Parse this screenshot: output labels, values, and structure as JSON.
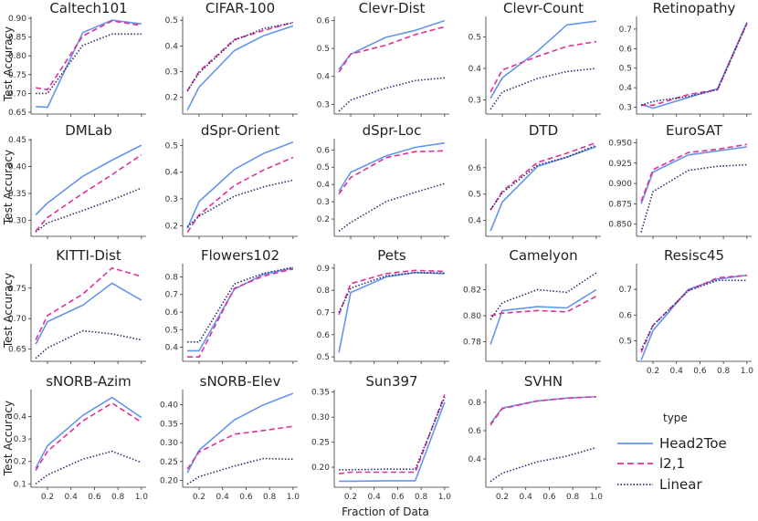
{
  "figure": {
    "xlabel": "Fraction of Data",
    "ylabel": "Test Accuracy",
    "legend": {
      "title": "type",
      "placement": "bottom-right",
      "entries": [
        {
          "name": "Head2Toe",
          "color": "#6495ED",
          "dash": "solid"
        },
        {
          "name": "l2,1",
          "color": "#E0309A",
          "dash": "dashed"
        },
        {
          "name": "Linear",
          "color": "#2F2F6F",
          "dash": "dotted"
        }
      ]
    }
  },
  "chart_data": [
    {
      "type": "line",
      "title": "Caltech101",
      "x": [
        0.1,
        0.2,
        0.5,
        0.75,
        1.0
      ],
      "ylim": [
        0.645,
        0.905
      ],
      "yticks": [
        0.65,
        0.7,
        0.75,
        0.8,
        0.85,
        0.9
      ],
      "ytick_labels": [
        "0.65",
        "0.70",
        "0.75",
        "0.80",
        "0.85",
        "0.90"
      ],
      "series": [
        {
          "name": "Head2Toe",
          "values": [
            0.665,
            0.663,
            0.862,
            0.895,
            0.885
          ]
        },
        {
          "name": "l2,1",
          "values": [
            0.715,
            0.71,
            0.853,
            0.893,
            0.881
          ]
        },
        {
          "name": "Linear",
          "values": [
            0.7,
            0.7,
            0.828,
            0.858,
            0.858
          ]
        }
      ]
    },
    {
      "type": "line",
      "title": "CIFAR-100",
      "x": [
        0.1,
        0.2,
        0.5,
        0.75,
        1.0
      ],
      "ylim": [
        0.135,
        0.515
      ],
      "yticks": [
        0.2,
        0.3,
        0.4,
        0.5
      ],
      "ytick_labels": [
        "0.2",
        "0.3",
        "0.4",
        "0.5"
      ],
      "series": [
        {
          "name": "Head2Toe",
          "values": [
            0.15,
            0.24,
            0.382,
            0.44,
            0.478
          ]
        },
        {
          "name": "l2,1",
          "values": [
            0.225,
            0.3,
            0.425,
            0.46,
            0.492
          ]
        },
        {
          "name": "Linear",
          "values": [
            0.225,
            0.295,
            0.422,
            0.468,
            0.49
          ]
        }
      ]
    },
    {
      "type": "line",
      "title": "Clevr-Dist",
      "x": [
        0.1,
        0.2,
        0.5,
        0.75,
        1.0
      ],
      "ylim": [
        0.265,
        0.615
      ],
      "yticks": [
        0.3,
        0.4,
        0.5,
        0.6
      ],
      "ytick_labels": [
        "0.3",
        "0.4",
        "0.5",
        "0.6"
      ],
      "series": [
        {
          "name": "Head2Toe",
          "values": [
            0.425,
            0.48,
            0.54,
            0.565,
            0.6
          ]
        },
        {
          "name": "l2,1",
          "values": [
            0.415,
            0.48,
            0.512,
            0.55,
            0.578
          ]
        },
        {
          "name": "Linear",
          "values": [
            0.275,
            0.315,
            0.358,
            0.385,
            0.395
          ]
        }
      ]
    },
    {
      "type": "line",
      "title": "Clevr-Count",
      "x": [
        0.1,
        0.2,
        0.5,
        0.75,
        1.0
      ],
      "ylim": [
        0.255,
        0.565
      ],
      "yticks": [
        0.3,
        0.4,
        0.5
      ],
      "ytick_labels": [
        "0.3",
        "0.4",
        "0.5"
      ],
      "series": [
        {
          "name": "Head2Toe",
          "values": [
            0.305,
            0.37,
            0.455,
            0.538,
            0.55
          ]
        },
        {
          "name": "l2,1",
          "values": [
            0.325,
            0.395,
            0.438,
            0.47,
            0.485
          ]
        },
        {
          "name": "Linear",
          "values": [
            0.27,
            0.325,
            0.368,
            0.39,
            0.4
          ]
        }
      ]
    },
    {
      "type": "line",
      "title": "Retinopathy",
      "x": [
        0.1,
        0.2,
        0.5,
        0.75,
        1.0
      ],
      "ylim": [
        0.265,
        0.765
      ],
      "yticks": [
        0.3,
        0.4,
        0.5,
        0.6,
        0.7
      ],
      "ytick_labels": [
        "0.3",
        "0.4",
        "0.5",
        "0.6",
        "0.7"
      ],
      "series": [
        {
          "name": "Head2Toe",
          "values": [
            0.315,
            0.295,
            0.35,
            0.395,
            0.735
          ]
        },
        {
          "name": "l2,1",
          "values": [
            0.31,
            0.31,
            0.365,
            0.39,
            0.73
          ]
        },
        {
          "name": "Linear",
          "values": [
            0.31,
            0.33,
            0.355,
            0.39,
            0.73
          ]
        }
      ]
    },
    {
      "type": "line",
      "title": "DMLab",
      "x": [
        0.1,
        0.2,
        0.5,
        0.75,
        1.0
      ],
      "ylim": [
        0.27,
        0.452
      ],
      "yticks": [
        0.3,
        0.35,
        0.4,
        0.45
      ],
      "ytick_labels": [
        "0.30",
        "0.35",
        "0.40",
        "0.45"
      ],
      "series": [
        {
          "name": "Head2Toe",
          "values": [
            0.31,
            0.332,
            0.382,
            0.412,
            0.44
          ]
        },
        {
          "name": "l2,1",
          "values": [
            0.28,
            0.305,
            0.35,
            0.385,
            0.422
          ]
        },
        {
          "name": "Linear",
          "values": [
            0.278,
            0.295,
            0.318,
            0.338,
            0.36
          ]
        }
      ]
    },
    {
      "type": "line",
      "title": "dSpr-Orient",
      "x": [
        0.1,
        0.2,
        0.5,
        0.75,
        1.0
      ],
      "ylim": [
        0.16,
        0.525
      ],
      "yticks": [
        0.2,
        0.3,
        0.4,
        0.5
      ],
      "ytick_labels": [
        "0.2",
        "0.3",
        "0.4",
        "0.5"
      ],
      "series": [
        {
          "name": "Head2Toe",
          "values": [
            0.19,
            0.29,
            0.41,
            0.47,
            0.512
          ]
        },
        {
          "name": "l2,1",
          "values": [
            0.175,
            0.24,
            0.35,
            0.408,
            0.455
          ]
        },
        {
          "name": "Linear",
          "values": [
            0.195,
            0.235,
            0.31,
            0.345,
            0.37
          ]
        }
      ]
    },
    {
      "type": "line",
      "title": "dSpr-Loc",
      "x": [
        0.1,
        0.2,
        0.5,
        0.75,
        1.0
      ],
      "ylim": [
        0.1,
        0.665
      ],
      "yticks": [
        0.2,
        0.3,
        0.4,
        0.5,
        0.6
      ],
      "ytick_labels": [
        "0.2",
        "0.3",
        "0.4",
        "0.5",
        "0.6"
      ],
      "series": [
        {
          "name": "Head2Toe",
          "values": [
            0.36,
            0.47,
            0.565,
            0.615,
            0.64
          ]
        },
        {
          "name": "l2,1",
          "values": [
            0.345,
            0.44,
            0.555,
            0.59,
            0.595
          ]
        },
        {
          "name": "Linear",
          "values": [
            0.13,
            0.18,
            0.3,
            0.355,
            0.405
          ]
        }
      ]
    },
    {
      "type": "line",
      "title": "DTD",
      "x": [
        0.1,
        0.2,
        0.5,
        0.75,
        1.0
      ],
      "ylim": [
        0.34,
        0.71
      ],
      "yticks": [
        0.4,
        0.5,
        0.6
      ],
      "ytick_labels": [
        "0.4",
        "0.5",
        "0.6"
      ],
      "series": [
        {
          "name": "Head2Toe",
          "values": [
            0.36,
            0.47,
            0.605,
            0.64,
            0.68
          ]
        },
        {
          "name": "l2,1",
          "values": [
            0.44,
            0.51,
            0.62,
            0.655,
            0.695
          ]
        },
        {
          "name": "Linear",
          "values": [
            0.44,
            0.505,
            0.61,
            0.64,
            0.685
          ]
        }
      ]
    },
    {
      "type": "line",
      "title": "EuroSAT",
      "x": [
        0.1,
        0.2,
        0.5,
        0.75,
        1.0
      ],
      "ylim": [
        0.835,
        0.955
      ],
      "yticks": [
        0.85,
        0.875,
        0.9,
        0.925,
        0.95
      ],
      "ytick_labels": [
        "0.850",
        "0.875",
        "0.900",
        "0.925",
        "0.950"
      ],
      "series": [
        {
          "name": "Head2Toe",
          "values": [
            0.875,
            0.914,
            0.935,
            0.94,
            0.945
          ]
        },
        {
          "name": "l2,1",
          "values": [
            0.878,
            0.917,
            0.938,
            0.942,
            0.948
          ]
        },
        {
          "name": "Linear",
          "values": [
            0.84,
            0.89,
            0.916,
            0.921,
            0.923
          ]
        }
      ]
    },
    {
      "type": "line",
      "title": "KITTI-Dist",
      "x": [
        0.1,
        0.2,
        0.5,
        0.75,
        1.0
      ],
      "ylim": [
        0.63,
        0.79
      ],
      "yticks": [
        0.65,
        0.7,
        0.75
      ],
      "ytick_labels": [
        "0.65",
        "0.70",
        "0.75"
      ],
      "series": [
        {
          "name": "Head2Toe",
          "values": [
            0.658,
            0.695,
            0.722,
            0.758,
            0.73
          ]
        },
        {
          "name": "l2,1",
          "values": [
            0.665,
            0.705,
            0.74,
            0.783,
            0.769
          ]
        },
        {
          "name": "Linear",
          "values": [
            0.635,
            0.652,
            0.68,
            0.675,
            0.665
          ]
        }
      ]
    },
    {
      "type": "line",
      "title": "Flowers102",
      "x": [
        0.1,
        0.2,
        0.5,
        0.75,
        1.0
      ],
      "ylim": [
        0.32,
        0.875
      ],
      "yticks": [
        0.4,
        0.5,
        0.6,
        0.7,
        0.8
      ],
      "ytick_labels": [
        "0.4",
        "0.5",
        "0.6",
        "0.7",
        "0.8"
      ],
      "series": [
        {
          "name": "Head2Toe",
          "values": [
            0.38,
            0.38,
            0.73,
            0.815,
            0.85
          ]
        },
        {
          "name": "l2,1",
          "values": [
            0.345,
            0.345,
            0.735,
            0.805,
            0.845
          ]
        },
        {
          "name": "Linear",
          "values": [
            0.43,
            0.43,
            0.76,
            0.82,
            0.855
          ]
        }
      ]
    },
    {
      "type": "line",
      "title": "Pets",
      "x": [
        0.1,
        0.2,
        0.5,
        0.75,
        1.0
      ],
      "ylim": [
        0.48,
        0.92
      ],
      "yticks": [
        0.5,
        0.6,
        0.7,
        0.8,
        0.9
      ],
      "ytick_labels": [
        "0.5",
        "0.6",
        "0.7",
        "0.8",
        "0.9"
      ],
      "series": [
        {
          "name": "Head2Toe",
          "values": [
            0.52,
            0.79,
            0.86,
            0.88,
            0.875
          ]
        },
        {
          "name": "l2,1",
          "values": [
            0.69,
            0.83,
            0.875,
            0.89,
            0.885
          ]
        },
        {
          "name": "Linear",
          "values": [
            0.7,
            0.81,
            0.865,
            0.88,
            0.878
          ]
        }
      ]
    },
    {
      "type": "line",
      "title": "Camelyon",
      "x": [
        0.1,
        0.2,
        0.5,
        0.75,
        1.0
      ],
      "ylim": [
        0.765,
        0.84
      ],
      "yticks": [
        0.78,
        0.8,
        0.82
      ],
      "ytick_labels": [
        "0.78",
        "0.80",
        "0.82"
      ],
      "series": [
        {
          "name": "Head2Toe",
          "values": [
            0.778,
            0.804,
            0.807,
            0.806,
            0.82
          ]
        },
        {
          "name": "l2,1",
          "values": [
            0.8,
            0.802,
            0.804,
            0.803,
            0.815
          ]
        },
        {
          "name": "Linear",
          "values": [
            0.797,
            0.81,
            0.82,
            0.818,
            0.833
          ]
        }
      ]
    },
    {
      "type": "line",
      "title": "Resisc45",
      "x": [
        0.1,
        0.2,
        0.5,
        0.75,
        1.0
      ],
      "ylim": [
        0.42,
        0.8
      ],
      "yticks": [
        0.5,
        0.6,
        0.7
      ],
      "ytick_labels": [
        "0.5",
        "0.6",
        "0.7"
      ],
      "series": [
        {
          "name": "Head2Toe",
          "values": [
            0.425,
            0.54,
            0.7,
            0.74,
            0.755
          ]
        },
        {
          "name": "l2,1",
          "values": [
            0.455,
            0.56,
            0.695,
            0.745,
            0.755
          ]
        },
        {
          "name": "Linear",
          "values": [
            0.465,
            0.56,
            0.695,
            0.735,
            0.735
          ]
        }
      ]
    },
    {
      "type": "line",
      "title": "sNORB-Azim",
      "x": [
        0.1,
        0.2,
        0.5,
        0.75,
        1.0
      ],
      "ylim": [
        0.085,
        0.52
      ],
      "yticks": [
        0.1,
        0.2,
        0.3,
        0.4
      ],
      "ytick_labels": [
        "0.1",
        "0.2",
        "0.3",
        "0.4"
      ],
      "series": [
        {
          "name": "Head2Toe",
          "values": [
            0.17,
            0.27,
            0.405,
            0.485,
            0.395
          ]
        },
        {
          "name": "l2,1",
          "values": [
            0.16,
            0.245,
            0.38,
            0.46,
            0.375
          ]
        },
        {
          "name": "Linear",
          "values": [
            0.1,
            0.14,
            0.21,
            0.245,
            0.195
          ]
        }
      ]
    },
    {
      "type": "line",
      "title": "sNORB-Elev",
      "x": [
        0.1,
        0.2,
        0.5,
        0.75,
        1.0
      ],
      "ylim": [
        0.182,
        0.44
      ],
      "yticks": [
        0.2,
        0.25,
        0.3,
        0.35,
        0.4
      ],
      "ytick_labels": [
        "0.20",
        "0.25",
        "0.30",
        "0.35",
        "0.40"
      ],
      "series": [
        {
          "name": "Head2Toe",
          "values": [
            0.22,
            0.28,
            0.36,
            0.4,
            0.43
          ]
        },
        {
          "name": "l2,1",
          "values": [
            0.23,
            0.275,
            0.322,
            0.332,
            0.343
          ]
        },
        {
          "name": "Linear",
          "values": [
            0.19,
            0.21,
            0.238,
            0.258,
            0.256
          ]
        }
      ]
    },
    {
      "type": "line",
      "title": "Sun397",
      "x": [
        0.1,
        0.2,
        0.5,
        0.75,
        1.0
      ],
      "ylim": [
        0.16,
        0.355
      ],
      "yticks": [
        0.2,
        0.25,
        0.3,
        0.35
      ],
      "ytick_labels": [
        "0.20",
        "0.25",
        "0.30",
        "0.35"
      ],
      "series": [
        {
          "name": "Head2Toe",
          "values": [
            0.172,
            0.172,
            0.173,
            0.173,
            0.33
          ]
        },
        {
          "name": "l2,1",
          "values": [
            0.187,
            0.19,
            0.19,
            0.19,
            0.345
          ]
        },
        {
          "name": "Linear",
          "values": [
            0.195,
            0.195,
            0.196,
            0.196,
            0.34
          ]
        }
      ]
    },
    {
      "type": "line",
      "title": "SVHN",
      "x": [
        0.1,
        0.2,
        0.5,
        0.75,
        1.0
      ],
      "ylim": [
        0.2,
        0.89
      ],
      "yticks": [
        0.4,
        0.6,
        0.8
      ],
      "ytick_labels": [
        "0.4",
        "0.6",
        "0.8"
      ],
      "series": [
        {
          "name": "Head2Toe",
          "values": [
            0.65,
            0.76,
            0.81,
            0.83,
            0.84
          ]
        },
        {
          "name": "l2,1",
          "values": [
            0.64,
            0.755,
            0.81,
            0.83,
            0.84
          ]
        },
        {
          "name": "Linear",
          "values": [
            0.24,
            0.3,
            0.38,
            0.42,
            0.48
          ]
        }
      ]
    }
  ]
}
